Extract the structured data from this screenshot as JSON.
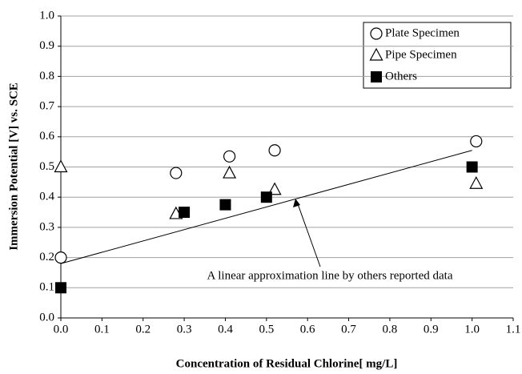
{
  "chart_data": {
    "type": "scatter",
    "xlabel": "Concentration of Residual Chlorine[ mg/L]",
    "ylabel": "Immersion Potential [V] vs. SCE",
    "xlim": [
      0,
      1.1
    ],
    "xticks": [
      {
        "value": 0,
        "label": "0.0"
      },
      0.1,
      0.2,
      0.3,
      0.4,
      0.5,
      0.6,
      0.7,
      0.8,
      0.9,
      {
        "value": 1,
        "label": "1.0"
      },
      1.1
    ],
    "ylim": [
      0,
      1
    ],
    "yticks": [
      {
        "value": 0,
        "label": "0.0"
      },
      0.1,
      0.2,
      0.3,
      0.4,
      0.5,
      0.6,
      0.7,
      0.8,
      0.9,
      {
        "value": 1,
        "label": "1.0"
      }
    ],
    "grid": true,
    "legend": "upper right",
    "series": [
      {
        "name": "Plate Specimen",
        "color": "#000000",
        "marker": "circle",
        "x": [
          0,
          0.28,
          0.41,
          0.52,
          1.01
        ],
        "values": [
          0.2,
          0.48,
          0.535,
          0.555,
          0.585
        ]
      },
      {
        "name": "Pipe Specimen",
        "color": "#000000",
        "marker": "triangle",
        "x": [
          0,
          0.28,
          0.41,
          0.52,
          1.01
        ],
        "values": [
          0.5,
          0.345,
          0.48,
          0.425,
          0.445
        ]
      },
      {
        "name": "Others",
        "color": "#000000",
        "marker": "square",
        "x": [
          0,
          0.3,
          0.4,
          0.5,
          1.0
        ],
        "values": [
          0.1,
          0.35,
          0.375,
          0.4,
          0.5
        ]
      }
    ],
    "trendline": {
      "x": [
        0,
        1.0
      ],
      "values": [
        0.18,
        0.555
      ]
    },
    "annotation": "A linear approximation line  by others reported data"
  }
}
